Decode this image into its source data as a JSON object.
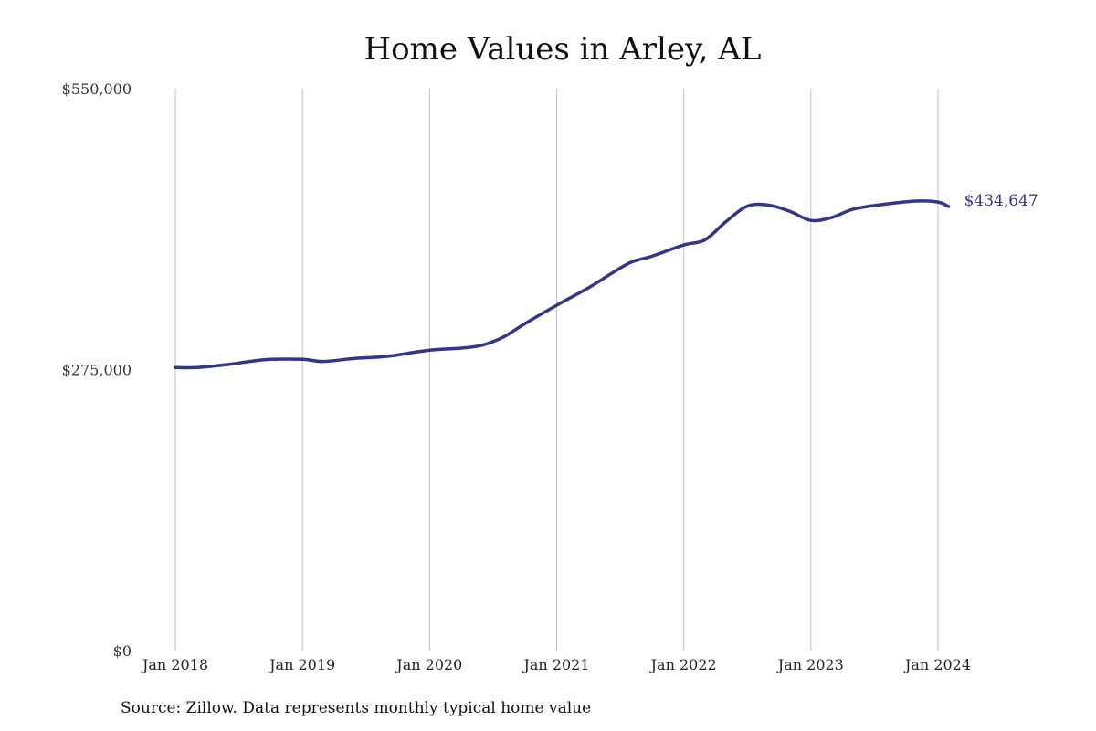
{
  "chart_data": {
    "type": "line",
    "title": "Home Values in Arley, AL",
    "source": "Source: Zillow. Data represents monthly typical home value",
    "xlabel": "",
    "ylabel": "",
    "ylim": [
      0,
      550000
    ],
    "yticks": [
      {
        "value": 0,
        "label": "$0"
      },
      {
        "value": 275000,
        "label": "$275,000"
      },
      {
        "value": 550000,
        "label": "$550,000"
      }
    ],
    "xticks": [
      {
        "date": "2018-01",
        "label": "Jan 2018"
      },
      {
        "date": "2019-01",
        "label": "Jan 2019"
      },
      {
        "date": "2020-01",
        "label": "Jan 2020"
      },
      {
        "date": "2021-01",
        "label": "Jan 2021"
      },
      {
        "date": "2022-01",
        "label": "Jan 2022"
      },
      {
        "date": "2023-01",
        "label": "Jan 2023"
      },
      {
        "date": "2024-01",
        "label": "Jan 2024"
      }
    ],
    "vertical_grid": true,
    "line_color": "#33358a",
    "end_label": "$434,647",
    "series": [
      {
        "points": [
          [
            "2018-01",
            277000
          ],
          [
            "2018-03",
            277000
          ],
          [
            "2018-06",
            280000
          ],
          [
            "2018-08",
            283000
          ],
          [
            "2018-10",
            285000
          ],
          [
            "2019-01",
            285000
          ],
          [
            "2019-03",
            283000
          ],
          [
            "2019-06",
            286000
          ],
          [
            "2019-09",
            288000
          ],
          [
            "2020-01",
            294000
          ],
          [
            "2020-04",
            296000
          ],
          [
            "2020-06",
            299000
          ],
          [
            "2020-08",
            307000
          ],
          [
            "2020-10",
            320000
          ],
          [
            "2021-01",
            338000
          ],
          [
            "2021-04",
            355000
          ],
          [
            "2021-06",
            368000
          ],
          [
            "2021-08",
            380000
          ],
          [
            "2021-10",
            386000
          ],
          [
            "2022-01",
            397000
          ],
          [
            "2022-03",
            402000
          ],
          [
            "2022-05",
            420000
          ],
          [
            "2022-07",
            435000
          ],
          [
            "2022-09",
            436000
          ],
          [
            "2022-11",
            430000
          ],
          [
            "2023-01",
            421000
          ],
          [
            "2023-03",
            424000
          ],
          [
            "2023-05",
            432000
          ],
          [
            "2023-08",
            437000
          ],
          [
            "2023-11",
            440000
          ],
          [
            "2024-01",
            439000
          ],
          [
            "2024-02",
            434647
          ]
        ]
      }
    ]
  }
}
